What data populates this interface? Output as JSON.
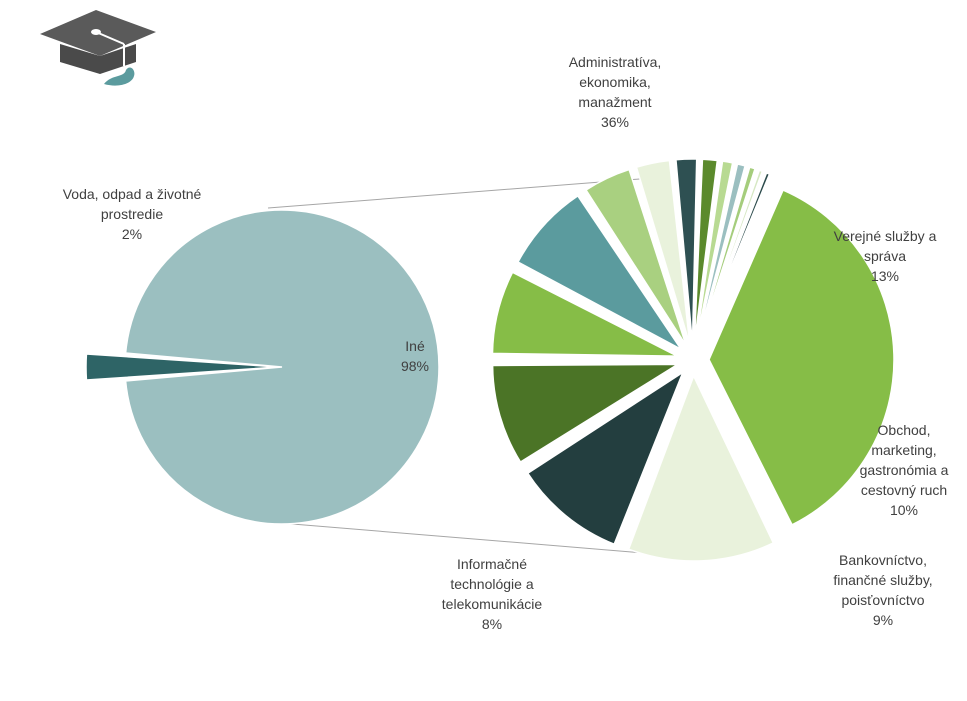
{
  "chart_data": {
    "type": "pie",
    "subtype": "pie-of-pie",
    "primary": {
      "slices": [
        {
          "label": "Iné",
          "value": 98,
          "color": "#9bbfc0"
        },
        {
          "label": "Voda, odpad a životné prostredie",
          "value": 2,
          "color": "#2e6466"
        }
      ]
    },
    "secondary": {
      "slices": [
        {
          "label": "Administratíva, ekonomika, manažment",
          "value": 36,
          "color": "#86bd47"
        },
        {
          "label": "Verejné služby a správa",
          "value": 13,
          "color": "#e9f2dc"
        },
        {
          "label": "Obchod, marketing, gastronómia a cestovný ruch",
          "value": 10,
          "color": "#233e3f"
        },
        {
          "label": "Bankovníctvo, finančné služby, poisťovníctvo",
          "value": 9,
          "color": "#4b7426"
        },
        {
          "label": "",
          "value": 7.5,
          "color": "#86bd47"
        },
        {
          "label": "Informačné technológie a telekomunikácie",
          "value": 8,
          "color": "#5b9b9e"
        },
        {
          "label": "",
          "value": 4.4,
          "color": "#a9d080"
        },
        {
          "label": "",
          "value": 3.2,
          "color": "#e9f2dc"
        },
        {
          "label": "",
          "value": 2.1,
          "color": "#2e5052"
        },
        {
          "label": "",
          "value": 1.6,
          "color": "#5b8a2c"
        },
        {
          "label": "",
          "value": 1.2,
          "color": "#b8da92"
        },
        {
          "label": "",
          "value": 1.0,
          "color": "#9bbfc0"
        },
        {
          "label": "",
          "value": 0.8,
          "color": "#a5cd7c"
        },
        {
          "label": "",
          "value": 0.6,
          "color": "#d6e8c3"
        },
        {
          "label": "",
          "value": 0.6,
          "color": "#2b4a4b"
        }
      ]
    }
  },
  "labels": {
    "voda": [
      "Voda, odpad a životné",
      "prostredie",
      "2%"
    ],
    "ine": [
      "Iné",
      "98%"
    ],
    "admin": [
      "Administratíva,",
      "ekonomika,",
      "manažment",
      "36%"
    ],
    "verejne": [
      "Verejné služby a",
      "správa",
      "13%"
    ],
    "obchod": [
      "Obchod,",
      "marketing,",
      "gastronómia a",
      "cestovný ruch",
      "10%"
    ],
    "bank": [
      "Bankovníctvo,",
      "finančné služby,",
      "poisťovníctvo",
      "9%"
    ],
    "it": [
      "Informačné",
      "technológie a",
      "telekomunikácie",
      "8%"
    ]
  },
  "logo": {
    "icon": "graduation-cap-icon"
  }
}
